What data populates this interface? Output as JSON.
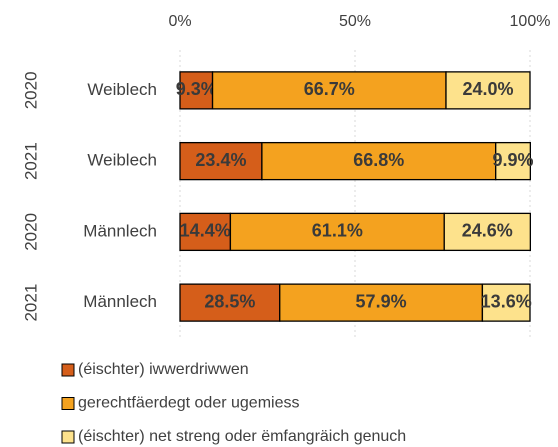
{
  "chart_data": {
    "type": "stacked-bar-horizontal",
    "categories": [
      "Weiblech",
      "Weiblech",
      "Männlech",
      "Männlech"
    ],
    "years": [
      "2020",
      "2021",
      "2020",
      "2021"
    ],
    "series": [
      {
        "name": "(éischter) iwwerdriwwen",
        "color": "#d55e1a",
        "values": [
          9.3,
          23.4,
          14.4,
          28.5
        ],
        "value_labels": [
          "9.3%",
          "23.4%",
          "14.4%",
          "28.5%"
        ]
      },
      {
        "name": "gerechtfäerdegt oder ugemiess",
        "color": "#f4a21f",
        "values": [
          66.7,
          66.8,
          61.1,
          57.9
        ],
        "value_labels": [
          "66.7%",
          "66.8%",
          "61.1%",
          "57.9%"
        ]
      },
      {
        "name": "(éischter) net streng oder ëmfangräich genuch",
        "color": "#fde28c",
        "values": [
          24.0,
          9.9,
          24.6,
          13.6
        ],
        "value_labels": [
          "24.0%",
          "9.9%",
          "24.6%",
          "13.6%"
        ]
      }
    ],
    "xlim": [
      0,
      100
    ],
    "xticks": [
      {
        "value": 0,
        "label": "0%"
      },
      {
        "value": 50,
        "label": "50%"
      },
      {
        "value": 100,
        "label": "100%"
      }
    ],
    "grid": true,
    "legend": "bottom"
  }
}
